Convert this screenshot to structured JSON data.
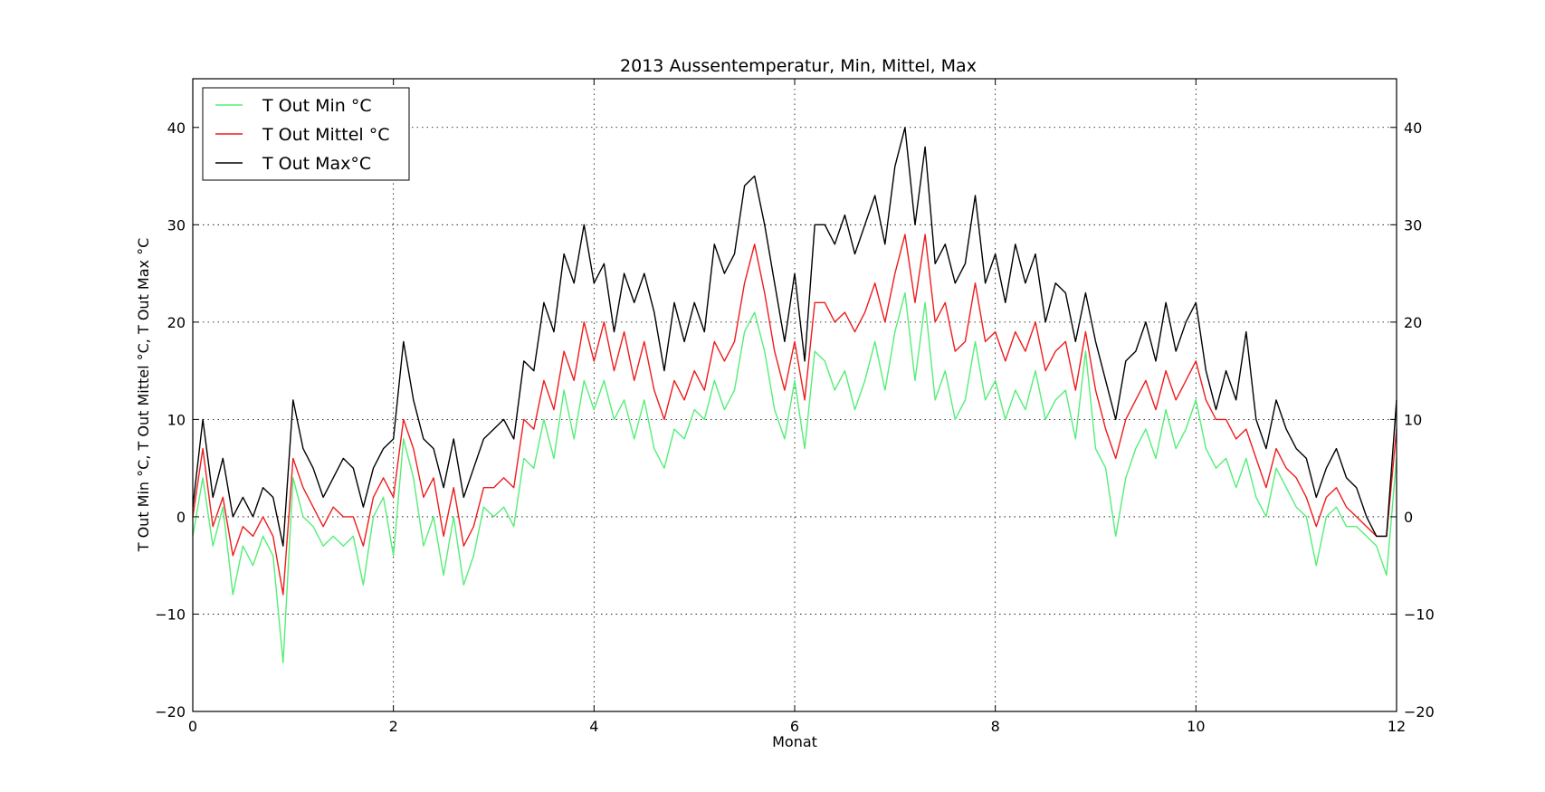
{
  "chart_data": {
    "type": "line",
    "title": "2013 Aussentemperatur, Min, Mittel, Max",
    "xlabel": "Monat",
    "ylabel": "T Out Min °C, T Out Mittel °C, T Out Max °C",
    "xlim": [
      0,
      12
    ],
    "ylim": [
      -20,
      45
    ],
    "xticks": [
      0,
      2,
      4,
      6,
      8,
      10,
      12
    ],
    "yticks": [
      -20,
      -10,
      0,
      10,
      20,
      30,
      40
    ],
    "grid": true,
    "legend_position": "top-left",
    "x": [
      0.0,
      0.1,
      0.2,
      0.3,
      0.4,
      0.5,
      0.6,
      0.7,
      0.8,
      0.9,
      1.0,
      1.1,
      1.2,
      1.3,
      1.4,
      1.5,
      1.6,
      1.7,
      1.8,
      1.9,
      2.0,
      2.1,
      2.2,
      2.3,
      2.4,
      2.5,
      2.6,
      2.7,
      2.8,
      2.9,
      3.0,
      3.1,
      3.2,
      3.3,
      3.4,
      3.5,
      3.6,
      3.7,
      3.8,
      3.9,
      4.0,
      4.1,
      4.2,
      4.3,
      4.4,
      4.5,
      4.6,
      4.7,
      4.8,
      4.9,
      5.0,
      5.1,
      5.2,
      5.3,
      5.4,
      5.5,
      5.6,
      5.7,
      5.8,
      5.9,
      6.0,
      6.1,
      6.2,
      6.3,
      6.4,
      6.5,
      6.6,
      6.7,
      6.8,
      6.9,
      7.0,
      7.1,
      7.2,
      7.3,
      7.4,
      7.5,
      7.6,
      7.7,
      7.8,
      7.9,
      8.0,
      8.1,
      8.2,
      8.3,
      8.4,
      8.5,
      8.6,
      8.7,
      8.8,
      8.9,
      9.0,
      9.1,
      9.2,
      9.3,
      9.4,
      9.5,
      9.6,
      9.7,
      9.8,
      9.9,
      10.0,
      10.1,
      10.2,
      10.3,
      10.4,
      10.5,
      10.6,
      10.7,
      10.8,
      10.9,
      11.0,
      11.1,
      11.2,
      11.3,
      11.4,
      11.5,
      11.6,
      11.7,
      11.8,
      11.9,
      12.0
    ],
    "series": [
      {
        "name": "T Out Min °C",
        "color": "#55ee77",
        "values": [
          -2,
          4,
          -3,
          1,
          -8,
          -3,
          -5,
          -2,
          -4,
          -15,
          4,
          0,
          -1,
          -3,
          -2,
          -3,
          -2,
          -7,
          0,
          2,
          -4,
          8,
          4,
          -3,
          0,
          -6,
          0,
          -7,
          -4,
          1,
          0,
          1,
          -1,
          6,
          5,
          10,
          6,
          13,
          8,
          14,
          11,
          14,
          10,
          12,
          8,
          12,
          7,
          5,
          9,
          8,
          11,
          10,
          14,
          11,
          13,
          19,
          21,
          17,
          11,
          8,
          14,
          7,
          17,
          16,
          13,
          15,
          11,
          14,
          18,
          13,
          19,
          23,
          14,
          22,
          12,
          15,
          10,
          12,
          18,
          12,
          14,
          10,
          13,
          11,
          15,
          10,
          12,
          13,
          8,
          17,
          7,
          5,
          -2,
          4,
          7,
          9,
          6,
          11,
          7,
          9,
          12,
          7,
          5,
          6,
          3,
          6,
          2,
          0,
          5,
          3,
          1,
          0,
          -5,
          0,
          1,
          -1,
          -1,
          -2,
          -3,
          -6,
          6
        ]
      },
      {
        "name": "T Out Mittel °C",
        "color": "#ee1c1c",
        "values": [
          0,
          7,
          -1,
          2,
          -4,
          -1,
          -2,
          0,
          -2,
          -8,
          6,
          3,
          1,
          -1,
          1,
          0,
          0,
          -3,
          2,
          4,
          2,
          10,
          7,
          2,
          4,
          -2,
          3,
          -3,
          -1,
          3,
          3,
          4,
          3,
          10,
          9,
          14,
          11,
          17,
          14,
          20,
          16,
          20,
          15,
          19,
          14,
          18,
          13,
          10,
          14,
          12,
          15,
          13,
          18,
          16,
          18,
          24,
          28,
          23,
          17,
          13,
          18,
          12,
          22,
          22,
          20,
          21,
          19,
          21,
          24,
          20,
          25,
          29,
          22,
          29,
          20,
          22,
          17,
          18,
          24,
          18,
          19,
          16,
          19,
          17,
          20,
          15,
          17,
          18,
          13,
          19,
          13,
          9,
          6,
          10,
          12,
          14,
          11,
          15,
          12,
          14,
          16,
          12,
          10,
          10,
          8,
          9,
          6,
          3,
          7,
          5,
          4,
          2,
          -1,
          2,
          3,
          1,
          0,
          -1,
          -2,
          -2,
          9
        ]
      },
      {
        "name": "T Out Max°C",
        "color": "#000000",
        "values": [
          1,
          10,
          2,
          6,
          0,
          2,
          0,
          3,
          2,
          -3,
          12,
          7,
          5,
          2,
          4,
          6,
          5,
          1,
          5,
          7,
          8,
          18,
          12,
          8,
          7,
          3,
          8,
          2,
          5,
          8,
          9,
          10,
          8,
          16,
          15,
          22,
          19,
          27,
          24,
          30,
          24,
          26,
          19,
          25,
          22,
          25,
          21,
          15,
          22,
          18,
          22,
          19,
          28,
          25,
          27,
          34,
          35,
          30,
          24,
          18,
          25,
          16,
          30,
          30,
          28,
          31,
          27,
          30,
          33,
          28,
          36,
          40,
          30,
          38,
          26,
          28,
          24,
          26,
          33,
          24,
          27,
          22,
          28,
          24,
          27,
          20,
          24,
          23,
          18,
          23,
          18,
          14,
          10,
          16,
          17,
          20,
          16,
          22,
          17,
          20,
          22,
          15,
          11,
          15,
          12,
          19,
          10,
          7,
          12,
          9,
          7,
          6,
          2,
          5,
          7,
          4,
          3,
          0,
          -2,
          -2,
          12
        ]
      }
    ]
  }
}
